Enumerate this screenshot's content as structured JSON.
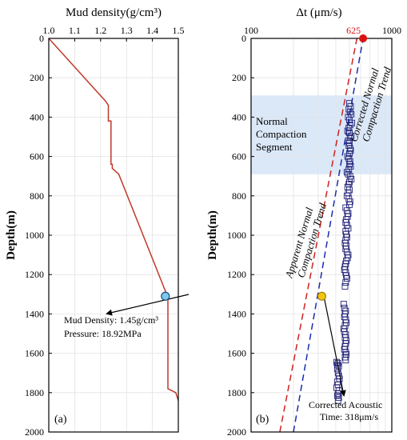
{
  "chart_data": [
    {
      "type": "line",
      "panel_label": "(a)",
      "xlabel": "Mud density(g/cm³)",
      "ylabel": "Depth(m)",
      "xlim": [
        1.0,
        1.5
      ],
      "ylim": [
        0,
        2000
      ],
      "y_reversed": true,
      "xticks": [
        "1.0",
        "1.1",
        "1.2",
        "1.3",
        "1.4",
        "1.5"
      ],
      "yticks": [
        "0",
        "200",
        "400",
        "600",
        "800",
        "1000",
        "1200",
        "1400",
        "1600",
        "1800",
        "2000"
      ],
      "series": [
        {
          "color": "#c0392b",
          "x": [
            1.0,
            1.22,
            1.23,
            1.23,
            1.24,
            1.24,
            1.245,
            1.245,
            1.27,
            1.455,
            1.46,
            1.46,
            1.49,
            1.5
          ],
          "y": [
            0,
            320,
            340,
            420,
            420,
            640,
            640,
            660,
            690,
            1300,
            1300,
            1780,
            1800,
            1840
          ]
        }
      ],
      "marker": {
        "x": 1.45,
        "y": 1310,
        "color": "#7ec8ea"
      },
      "annotation": {
        "line1": "Mud Density: 1.45g/cm³",
        "line2": "Pressure: 18.92MPa"
      }
    },
    {
      "type": "scatter",
      "panel_label": "(b)",
      "xlabel": "Δt (μm/s)",
      "ylabel": "Depth(m)",
      "x_scale": "log",
      "xlim": [
        100,
        1000
      ],
      "ylim": [
        0,
        2000
      ],
      "y_reversed": true,
      "xticks": [
        "100",
        "1000"
      ],
      "highlight_tick": {
        "value": 625,
        "label": "625",
        "color": "#d11"
      },
      "yticks": [
        "0",
        "200",
        "400",
        "600",
        "800",
        "1000",
        "1200",
        "1400",
        "1600",
        "1800",
        "2000"
      ],
      "band": {
        "y": [
          290,
          690
        ],
        "color": "#dbe8f8",
        "label_line1": "Normal",
        "label_line2": "Compaction",
        "label_line3": "Segment"
      },
      "trend_lines": [
        {
          "color": "#cc2222",
          "x": [
            160,
            565
          ],
          "y": [
            2000,
            0
          ],
          "label_line1": "Apparent  Normal",
          "label_line2": "Compaction Trend"
        },
        {
          "color": "#1a2bb0",
          "x": [
            200,
            625
          ],
          "y": [
            2000,
            0
          ],
          "label_line1": "Corrected  Normal",
          "label_line2": "Compaction Trend"
        }
      ],
      "points": {
        "color": "#24247a",
        "x": [
          500,
          510,
          495,
          505,
          515,
          490,
          500,
          520,
          505,
          495,
          485,
          500,
          515,
          505,
          490,
          500,
          495,
          505,
          510,
          500,
          485,
          495,
          505,
          500,
          510,
          495,
          480,
          490,
          505,
          515,
          500,
          495,
          485,
          500,
          490,
          480,
          495,
          505,
          500,
          470,
          480,
          490,
          485,
          475,
          470,
          480,
          490,
          470,
          475,
          480,
          470,
          465,
          475,
          470,
          480,
          490,
          485,
          475,
          470,
          465,
          460,
          470,
          475,
          480,
          470,
          465,
          455,
          460,
          470,
          465,
          460,
          470,
          475,
          465,
          455,
          460,
          470,
          465,
          475,
          470,
          465,
          460,
          470,
          475,
          465,
          470,
          415,
          420,
          410,
          415,
          420,
          425,
          410,
          415,
          405,
          420,
          415,
          410,
          420,
          415,
          405,
          410
        ],
        "y": [
          330,
          345,
          360,
          375,
          385,
          400,
          415,
          430,
          440,
          455,
          470,
          480,
          495,
          505,
          520,
          530,
          545,
          560,
          570,
          585,
          600,
          610,
          625,
          640,
          650,
          665,
          680,
          690,
          700,
          715,
          730,
          740,
          755,
          770,
          785,
          800,
          815,
          830,
          845,
          860,
          875,
          890,
          905,
          920,
          935,
          950,
          965,
          980,
          995,
          1010,
          1025,
          1040,
          1055,
          1070,
          1085,
          1100,
          1115,
          1130,
          1145,
          1160,
          1175,
          1190,
          1205,
          1220,
          1240,
          1260,
          1350,
          1370,
          1385,
          1400,
          1415,
          1430,
          1445,
          1460,
          1475,
          1490,
          1505,
          1520,
          1535,
          1550,
          1565,
          1580,
          1595,
          1605,
          1620,
          1635,
          1650,
          1665,
          1680,
          1700,
          1715,
          1730,
          1745,
          1760,
          1775,
          1790,
          1805,
          1815,
          1825,
          1840,
          1645,
          1660
        ]
      },
      "marker": {
        "x": 318,
        "y": 1310,
        "color": "#f2c40f"
      },
      "annotation": {
        "line1": "Corrected Acoustic",
        "line2": "Time: 318μm/s"
      }
    }
  ]
}
